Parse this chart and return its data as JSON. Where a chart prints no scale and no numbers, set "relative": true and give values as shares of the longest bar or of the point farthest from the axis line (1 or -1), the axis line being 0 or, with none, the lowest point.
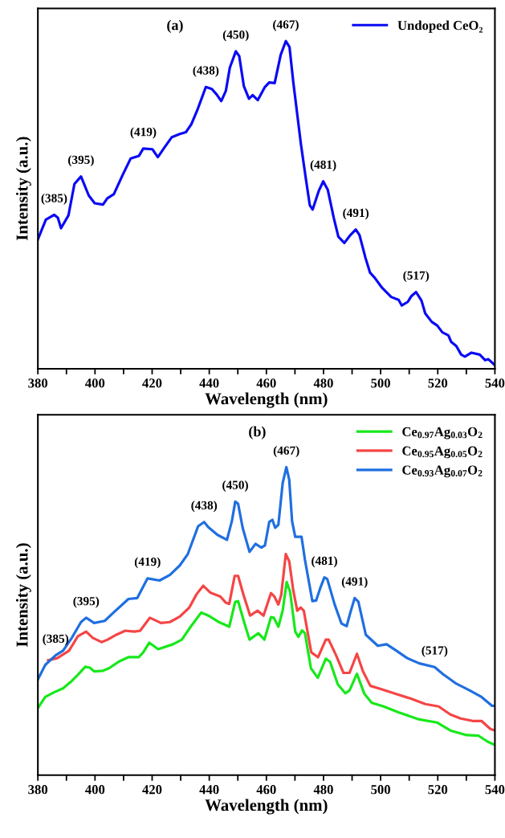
{
  "chart_data": [
    {
      "type": "line",
      "relative": true,
      "xlabel": "Wavelength (nm)",
      "ylabel": "Intensity (a.u.)",
      "xlim": [
        380,
        540
      ],
      "xticks": [
        380,
        {
          "value": 390,
          "label": null
        },
        400,
        {
          "value": 410,
          "label": null
        },
        420,
        {
          "value": 430,
          "label": null
        },
        440,
        {
          "value": 450,
          "label": null
        },
        460,
        {
          "value": 470,
          "label": null
        },
        480,
        {
          "value": 490,
          "label": null
        },
        500,
        {
          "value": 510,
          "label": null
        },
        520,
        {
          "value": 530,
          "label": null
        },
        540
      ],
      "legend": "top right",
      "annotations": [
        "(a)",
        {
          "text": "(385)",
          "x": 385.7,
          "y": 0.47
        },
        {
          "text": "(395)",
          "x": 395.1,
          "y": 0.587
        },
        {
          "text": "(419)",
          "x": 416.9,
          "y": 0.672
        },
        {
          "text": "(438)",
          "x": 438.8,
          "y": 0.86
        },
        {
          "text": "(450)",
          "x": 449.3,
          "y": 0.969
        },
        {
          "text": "(467)",
          "x": 466.8,
          "y": 1.0
        },
        {
          "text": "(481)",
          "x": 479.9,
          "y": 0.572
        },
        {
          "text": "(491)",
          "x": 491.3,
          "y": 0.425
        },
        {
          "text": "(517)",
          "x": 512.4,
          "y": 0.234
        }
      ],
      "series": [
        {
          "name": "Undoped CeO₂",
          "color": "#0a0af5",
          "x": [
            380,
            382.8,
            385.7,
            387,
            388.1,
            390.7,
            392.8,
            395.1,
            397.8,
            399.9,
            402.8,
            404.3,
            406.6,
            409.6,
            412.5,
            415.4,
            416.9,
            420.1,
            422,
            424.3,
            426.9,
            429.5,
            431.8,
            433.7,
            435.8,
            438.8,
            440.9,
            442.6,
            444.2,
            445.8,
            447.2,
            449.3,
            450.5,
            452.1,
            453.9,
            455.2,
            457,
            459.4,
            461,
            462.9,
            465,
            466.8,
            468.1,
            469.4,
            472.1,
            473.8,
            475.2,
            476.2,
            478.3,
            479.9,
            481.5,
            483.6,
            485.2,
            487.3,
            489.4,
            491.3,
            492.6,
            494.7,
            496.3,
            497.9,
            500.5,
            503.7,
            506.3,
            507.4,
            509.5,
            510.7,
            512.4,
            514.3,
            515.6,
            517.9,
            519.8,
            521.6,
            523.7,
            524.7,
            526.5,
            528.2,
            529.5,
            531.8,
            534.7,
            536.6,
            537.7,
            540
          ],
          "values": [
            0.395,
            0.455,
            0.47,
            0.461,
            0.429,
            0.468,
            0.564,
            0.587,
            0.529,
            0.505,
            0.501,
            0.52,
            0.533,
            0.59,
            0.642,
            0.65,
            0.672,
            0.67,
            0.646,
            0.675,
            0.707,
            0.716,
            0.722,
            0.746,
            0.789,
            0.86,
            0.854,
            0.837,
            0.817,
            0.848,
            0.919,
            0.969,
            0.954,
            0.863,
            0.824,
            0.835,
            0.82,
            0.859,
            0.874,
            0.872,
            0.958,
            1.0,
            0.982,
            0.876,
            0.685,
            0.581,
            0.499,
            0.486,
            0.542,
            0.572,
            0.546,
            0.46,
            0.403,
            0.384,
            0.408,
            0.425,
            0.408,
            0.338,
            0.293,
            0.278,
            0.247,
            0.219,
            0.21,
            0.193,
            0.204,
            0.221,
            0.234,
            0.208,
            0.169,
            0.143,
            0.132,
            0.111,
            0.102,
            0.082,
            0.069,
            0.043,
            0.037,
            0.049,
            0.043,
            0.026,
            0.029,
            0.011
          ]
        }
      ]
    },
    {
      "type": "line",
      "relative": true,
      "xlabel": "Wavelength (nm)",
      "ylabel": "Intensity (a.u.)",
      "xlim": [
        380,
        540
      ],
      "xticks": [
        380,
        {
          "value": 390,
          "label": null
        },
        400,
        {
          "value": 410,
          "label": null
        },
        420,
        {
          "value": 430,
          "label": null
        },
        440,
        {
          "value": 450,
          "label": null
        },
        460,
        {
          "value": 470,
          "label": null
        },
        480,
        {
          "value": 490,
          "label": null
        },
        500,
        {
          "value": 510,
          "label": null
        },
        520,
        {
          "value": 530,
          "label": null
        },
        540
      ],
      "legend": "top right",
      "annotations": [
        "(b)",
        {
          "text": "(385)",
          "x": 386.2,
          "y": 0.389
        },
        {
          "text": "(395)",
          "x": 396.9,
          "y": 0.511
        },
        {
          "text": "(419)",
          "x": 418.4,
          "y": 0.639
        },
        {
          "text": "(438)",
          "x": 438.2,
          "y": 0.822
        },
        {
          "text": "(450)",
          "x": 449.1,
          "y": 0.888
        },
        {
          "text": "(467)",
          "x": 467,
          "y": 1.0
        },
        {
          "text": "(481)",
          "x": 480.3,
          "y": 0.642
        },
        {
          "text": "(491)",
          "x": 490.9,
          "y": 0.575
        },
        {
          "text": "(517)",
          "x": 518.9,
          "y": 0.351
        }
      ],
      "series": [
        {
          "name": "Ce$_{0.97}$Ag$_{0.03}$O$_{2}$",
          "color": "#17e81a",
          "x": [
            380,
            382.6,
            385.7,
            388.8,
            391.9,
            394,
            396.6,
            398.2,
            399.7,
            402.8,
            404.9,
            408.6,
            411.7,
            415.3,
            416.9,
            419,
            422.1,
            427.3,
            430.4,
            433.5,
            437.2,
            439.7,
            443.4,
            447,
            449.1,
            450.1,
            452.2,
            454.1,
            457.2,
            459.3,
            461.6,
            462.6,
            464.2,
            465.7,
            467.1,
            468.3,
            470.1,
            471.2,
            472.5,
            473.5,
            475.6,
            478,
            480.8,
            482.3,
            485,
            487.6,
            489.1,
            491.7,
            494.3,
            496.9,
            501,
            506.2,
            513.5,
            519.7,
            524.4,
            530.1,
            534.3,
            537.4,
            540
          ],
          "values": [
            0.218,
            0.254,
            0.269,
            0.282,
            0.306,
            0.326,
            0.352,
            0.349,
            0.337,
            0.339,
            0.347,
            0.37,
            0.383,
            0.383,
            0.399,
            0.43,
            0.409,
            0.425,
            0.44,
            0.482,
            0.528,
            0.518,
            0.497,
            0.482,
            0.563,
            0.565,
            0.497,
            0.44,
            0.461,
            0.44,
            0.513,
            0.511,
            0.482,
            0.534,
            0.627,
            0.596,
            0.466,
            0.449,
            0.47,
            0.461,
            0.347,
            0.316,
            0.378,
            0.368,
            0.295,
            0.266,
            0.275,
            0.329,
            0.264,
            0.235,
            0.223,
            0.204,
            0.181,
            0.171,
            0.145,
            0.13,
            0.128,
            0.109,
            0.098
          ]
        },
        {
          "name": "Ce$_{0.95}$Ag$_{0.05}$O$_{2}$",
          "color": "#f54545",
          "x": [
            383.6,
            386.8,
            390.9,
            394,
            396.9,
            399.2,
            402.3,
            404.4,
            407.5,
            410.6,
            413.8,
            415.8,
            419.2,
            423.1,
            426.2,
            429.7,
            433,
            435.6,
            437.9,
            440.3,
            443.9,
            445.8,
            447,
            448.9,
            450.1,
            452,
            454.3,
            456.9,
            459,
            461.6,
            462.8,
            464.2,
            465.2,
            466.8,
            468,
            469.4,
            470.8,
            472,
            473.1,
            475.7,
            478.1,
            480.8,
            481.8,
            484.4,
            487,
            489.1,
            491.7,
            493.8,
            496.4,
            500,
            505.2,
            510.4,
            515.6,
            520.3,
            524.4,
            528,
            532.2,
            535.3,
            538.4,
            540
          ],
          "values": [
            0.373,
            0.38,
            0.404,
            0.451,
            0.466,
            0.446,
            0.432,
            0.44,
            0.456,
            0.469,
            0.466,
            0.469,
            0.511,
            0.494,
            0.497,
            0.515,
            0.544,
            0.588,
            0.615,
            0.593,
            0.58,
            0.56,
            0.556,
            0.647,
            0.647,
            0.585,
            0.518,
            0.534,
            0.518,
            0.591,
            0.58,
            0.554,
            0.585,
            0.718,
            0.694,
            0.601,
            0.534,
            0.544,
            0.534,
            0.399,
            0.383,
            0.44,
            0.44,
            0.389,
            0.332,
            0.332,
            0.394,
            0.337,
            0.29,
            0.28,
            0.264,
            0.249,
            0.231,
            0.223,
            0.197,
            0.184,
            0.176,
            0.176,
            0.15,
            0.145
          ]
        },
        {
          "name": "Ce$_{0.93}$Ag$_{0.07}$O$_{2}$",
          "color": "#1f6fe0",
          "x": [
            380,
            382.6,
            386.2,
            388.8,
            391.9,
            395.1,
            396.9,
            399.7,
            403.4,
            406.5,
            411.7,
            414.8,
            418.4,
            422.6,
            426.2,
            429.7,
            432.5,
            436.1,
            438.2,
            439.7,
            442.9,
            446.2,
            447.9,
            449.1,
            450.1,
            451.7,
            454.1,
            456.2,
            458.2,
            459.5,
            461,
            462.1,
            463.1,
            464.2,
            465.7,
            467,
            468,
            469,
            470.1,
            472.3,
            473.5,
            476.1,
            477.4,
            479,
            480.3,
            481.3,
            483.9,
            486.3,
            488.1,
            489.4,
            490.9,
            492.2,
            494.8,
            499,
            502.1,
            505.2,
            509.3,
            513.5,
            518.9,
            521.8,
            526.5,
            531.2,
            535.3,
            539,
            540
          ],
          "values": [
            0.311,
            0.358,
            0.389,
            0.404,
            0.446,
            0.497,
            0.511,
            0.494,
            0.501,
            0.528,
            0.572,
            0.575,
            0.639,
            0.632,
            0.65,
            0.681,
            0.718,
            0.808,
            0.822,
            0.805,
            0.78,
            0.764,
            0.824,
            0.888,
            0.881,
            0.803,
            0.725,
            0.751,
            0.739,
            0.746,
            0.822,
            0.829,
            0.803,
            0.813,
            0.948,
            1.0,
            0.959,
            0.824,
            0.774,
            0.774,
            0.699,
            0.565,
            0.567,
            0.611,
            0.642,
            0.637,
            0.554,
            0.492,
            0.484,
            0.528,
            0.575,
            0.563,
            0.456,
            0.42,
            0.425,
            0.406,
            0.38,
            0.363,
            0.351,
            0.328,
            0.297,
            0.275,
            0.254,
            0.225,
            0.225
          ]
        }
      ]
    }
  ]
}
